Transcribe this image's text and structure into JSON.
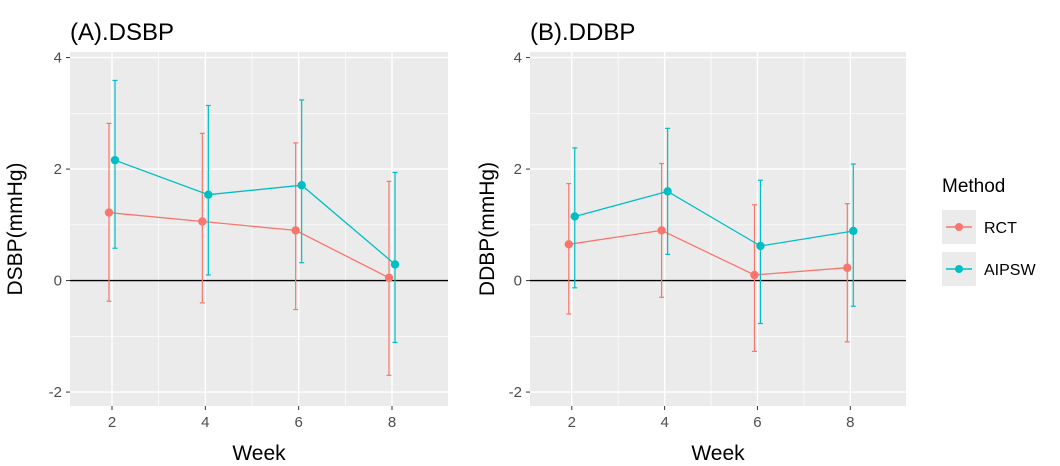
{
  "legend": {
    "title": "Method",
    "items": [
      {
        "name": "RCT",
        "color": "#F8766D"
      },
      {
        "name": "AIPSW",
        "color": "#00BFC4"
      }
    ]
  },
  "style": {
    "panel_background": "#EBEBEB",
    "grid_color": "#FFFFFF",
    "reference_line_color": "#000000",
    "tick_label_color": "#4D4D4D"
  },
  "chart_data": [
    {
      "type": "line",
      "title": "(A).DSBP",
      "xlabel": "Week",
      "ylabel": "DSBP(mmHg)",
      "xlim": [
        1.1,
        9.2
      ],
      "ylim": [
        -2.25,
        4.1
      ],
      "x_ticks": [
        2,
        4,
        6,
        8
      ],
      "y_ticks": [
        -2,
        0,
        2,
        4
      ],
      "reference_line_y": 0,
      "grid": true,
      "error_bars": true,
      "series": [
        {
          "name": "RCT",
          "color": "#F8766D",
          "x": [
            2,
            4,
            6,
            8
          ],
          "y": [
            1.22,
            1.06,
            0.9,
            0.05
          ],
          "lower": [
            -0.37,
            -0.4,
            -0.52,
            -1.7
          ],
          "upper": [
            2.82,
            2.64,
            2.47,
            1.78
          ]
        },
        {
          "name": "AIPSW",
          "color": "#00BFC4",
          "x": [
            2,
            4,
            6,
            8
          ],
          "y": [
            2.16,
            1.54,
            1.71,
            0.29
          ],
          "lower": [
            0.58,
            0.1,
            0.32,
            -1.11
          ],
          "upper": [
            3.59,
            3.14,
            3.24,
            1.94
          ]
        }
      ]
    },
    {
      "type": "line",
      "title": "(B).DDBP",
      "xlabel": "Week",
      "ylabel": "DDBP(mmHg)",
      "xlim": [
        1.1,
        9.2
      ],
      "ylim": [
        -2.25,
        4.1
      ],
      "x_ticks": [
        2,
        4,
        6,
        8
      ],
      "y_ticks": [
        -2,
        0,
        2,
        4
      ],
      "reference_line_y": 0,
      "grid": true,
      "error_bars": true,
      "series": [
        {
          "name": "RCT",
          "color": "#F8766D",
          "x": [
            2,
            4,
            6,
            8
          ],
          "y": [
            0.65,
            0.9,
            0.1,
            0.23
          ],
          "lower": [
            -0.6,
            -0.3,
            -1.27,
            -1.1
          ],
          "upper": [
            1.74,
            2.1,
            1.36,
            1.38
          ]
        },
        {
          "name": "AIPSW",
          "color": "#00BFC4",
          "x": [
            2,
            4,
            6,
            8
          ],
          "y": [
            1.15,
            1.6,
            0.62,
            0.89
          ],
          "lower": [
            -0.13,
            0.47,
            -0.77,
            -0.46
          ],
          "upper": [
            2.38,
            2.73,
            1.8,
            2.09
          ]
        }
      ]
    }
  ]
}
